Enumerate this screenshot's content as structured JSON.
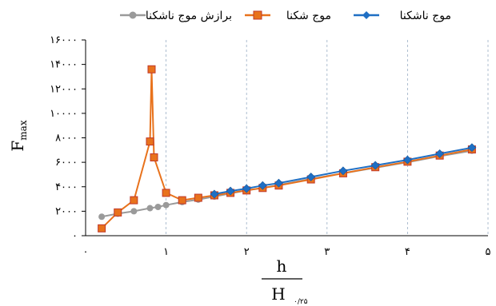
{
  "chart_data": {
    "type": "line",
    "title": "",
    "xlabel_num": "h",
    "xlabel_den": "H",
    "xlabel_den_sub": "۰/۲۵",
    "ylabel": "F",
    "ylabel_sub": "max",
    "xlim": [
      0,
      5
    ],
    "ylim": [
      0,
      16000
    ],
    "x_ticks": [
      {
        "v": 0,
        "label": "۰"
      },
      {
        "v": 1,
        "label": "۱"
      },
      {
        "v": 2,
        "label": "۲"
      },
      {
        "v": 3,
        "label": "۳"
      },
      {
        "v": 4,
        "label": "۴"
      },
      {
        "v": 5,
        "label": "۵"
      }
    ],
    "y_ticks": [
      {
        "v": 0,
        "label": "۰"
      },
      {
        "v": 2000,
        "label": "۲۰۰۰"
      },
      {
        "v": 4000,
        "label": "۴۰۰۰"
      },
      {
        "v": 6000,
        "label": "۶۰۰۰"
      },
      {
        "v": 8000,
        "label": "۸۰۰۰"
      },
      {
        "v": 10000,
        "label": "۱۰۰۰۰"
      },
      {
        "v": 12000,
        "label": "۱۲۰۰۰"
      },
      {
        "v": 14000,
        "label": "۱۴۰۰۰"
      },
      {
        "v": 16000,
        "label": "۱۶۰۰۰"
      }
    ],
    "grid": {
      "vertical": true,
      "style": "dashed"
    },
    "legend_position": "top",
    "series": [
      {
        "name": "موج ناشکنا",
        "color": "#1f6fc4",
        "marker": "diamond",
        "x": [
          1.6,
          1.8,
          2.0,
          2.2,
          2.4,
          2.8,
          3.2,
          3.6,
          4.0,
          4.4,
          4.8
        ],
        "y": [
          3400,
          3650,
          3850,
          4100,
          4300,
          4800,
          5300,
          5750,
          6200,
          6700,
          7200
        ]
      },
      {
        "name": "موج شکنا",
        "color": "#e8721c",
        "marker": "square",
        "x": [
          0.2,
          0.4,
          0.6,
          0.8,
          0.82,
          0.85,
          1.0,
          1.2,
          1.4,
          1.6,
          1.8,
          2.0,
          2.2,
          2.4,
          2.8,
          3.2,
          3.6,
          4.0,
          4.4,
          4.8
        ],
        "y": [
          600,
          1900,
          2900,
          7700,
          13600,
          6400,
          3500,
          2900,
          3100,
          3300,
          3500,
          3700,
          3900,
          4100,
          4600,
          5100,
          5600,
          6050,
          6550,
          7050
        ]
      },
      {
        "name": "برازش موج ناشکنا",
        "color": "#9a9a9a",
        "marker": "circle",
        "x": [
          0.2,
          0.4,
          0.6,
          0.8,
          0.9,
          1.0,
          1.2,
          1.4,
          1.6,
          1.8,
          2.0,
          2.2,
          2.4,
          2.8,
          3.2,
          3.6,
          4.0,
          4.4,
          4.8
        ],
        "y": [
          1550,
          1800,
          2000,
          2250,
          2350,
          2500,
          2750,
          2950,
          3200,
          3450,
          3700,
          3900,
          4150,
          4650,
          5100,
          5550,
          6000,
          6500,
          6950
        ]
      }
    ]
  }
}
